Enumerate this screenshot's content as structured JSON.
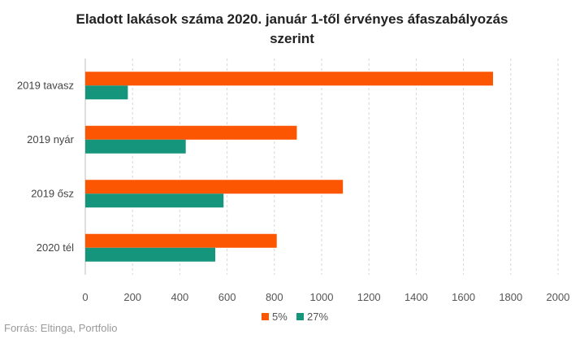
{
  "chart_data": {
    "type": "bar",
    "orientation": "horizontal",
    "title_line1": "Eladott lakások száma 2020. január 1-től érvényes áfaszabályozás",
    "title_line2": "szerint",
    "categories": [
      "2019 tavasz",
      "2019 nyár",
      "2019 ősz",
      "2020 tél"
    ],
    "series": [
      {
        "name": "5%",
        "color": "#fc5603",
        "values": [
          1725,
          895,
          1090,
          810
        ]
      },
      {
        "name": "27%",
        "color": "#14957c",
        "values": [
          180,
          425,
          585,
          550
        ]
      }
    ],
    "xlim": [
      0,
      2000
    ],
    "xticks": [
      "0",
      "200",
      "400",
      "600",
      "800",
      "1000",
      "1200",
      "1400",
      "1600",
      "1800",
      "2000"
    ],
    "grid": "vertical-dashed",
    "legend_position": "bottom-center",
    "source": "Forrás: Eltinga, Portfolio"
  }
}
